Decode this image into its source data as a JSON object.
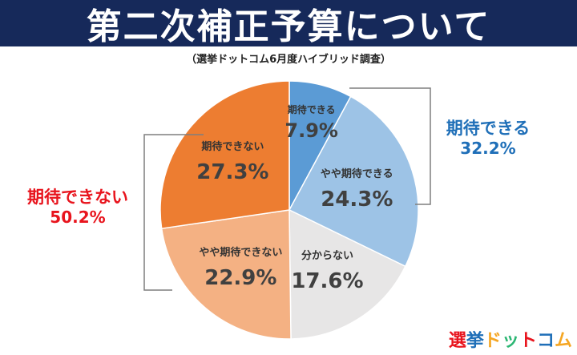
{
  "banner": {
    "title": "第二次補正予算について"
  },
  "subtitle": "（選挙ドットコム6月度ハイブリッド調査）",
  "groups": {
    "positive": {
      "label": "期待できる",
      "pct": "32.2%",
      "color": "#1f6fb8"
    },
    "negative": {
      "label": "期待できない",
      "pct": "50.2%",
      "color": "#e8141d"
    }
  },
  "chart_data": {
    "type": "pie",
    "unit": "%",
    "start_angle_deg": 0,
    "direction": "clockwise",
    "slices": [
      {
        "label": "期待できる",
        "value": 7.9,
        "value_label": "7.9%",
        "color": "#5b9bd5"
      },
      {
        "label": "やや期待できる",
        "value": 24.3,
        "value_label": "24.3%",
        "color": "#9dc3e6"
      },
      {
        "label": "分からない",
        "value": 17.6,
        "value_label": "17.6%",
        "color": "#e7e6e6"
      },
      {
        "label": "やや期待できない",
        "value": 22.9,
        "value_label": "22.9%",
        "color": "#f4b183"
      },
      {
        "label": "期待できない",
        "value": 27.3,
        "value_label": "27.3%",
        "color": "#ed7d31"
      }
    ]
  },
  "watermark": {
    "parts": [
      {
        "text": "選",
        "color": "#e8141d"
      },
      {
        "text": "挙",
        "color": "#1f6fb8"
      },
      {
        "text": "ド",
        "color": "#f5a623"
      },
      {
        "text": "ッ",
        "color": "#2bb673"
      },
      {
        "text": "ト",
        "color": "#e8141d"
      },
      {
        "text": "コ",
        "color": "#1f6fb8"
      },
      {
        "text": "ム",
        "color": "#f5a623"
      }
    ]
  }
}
